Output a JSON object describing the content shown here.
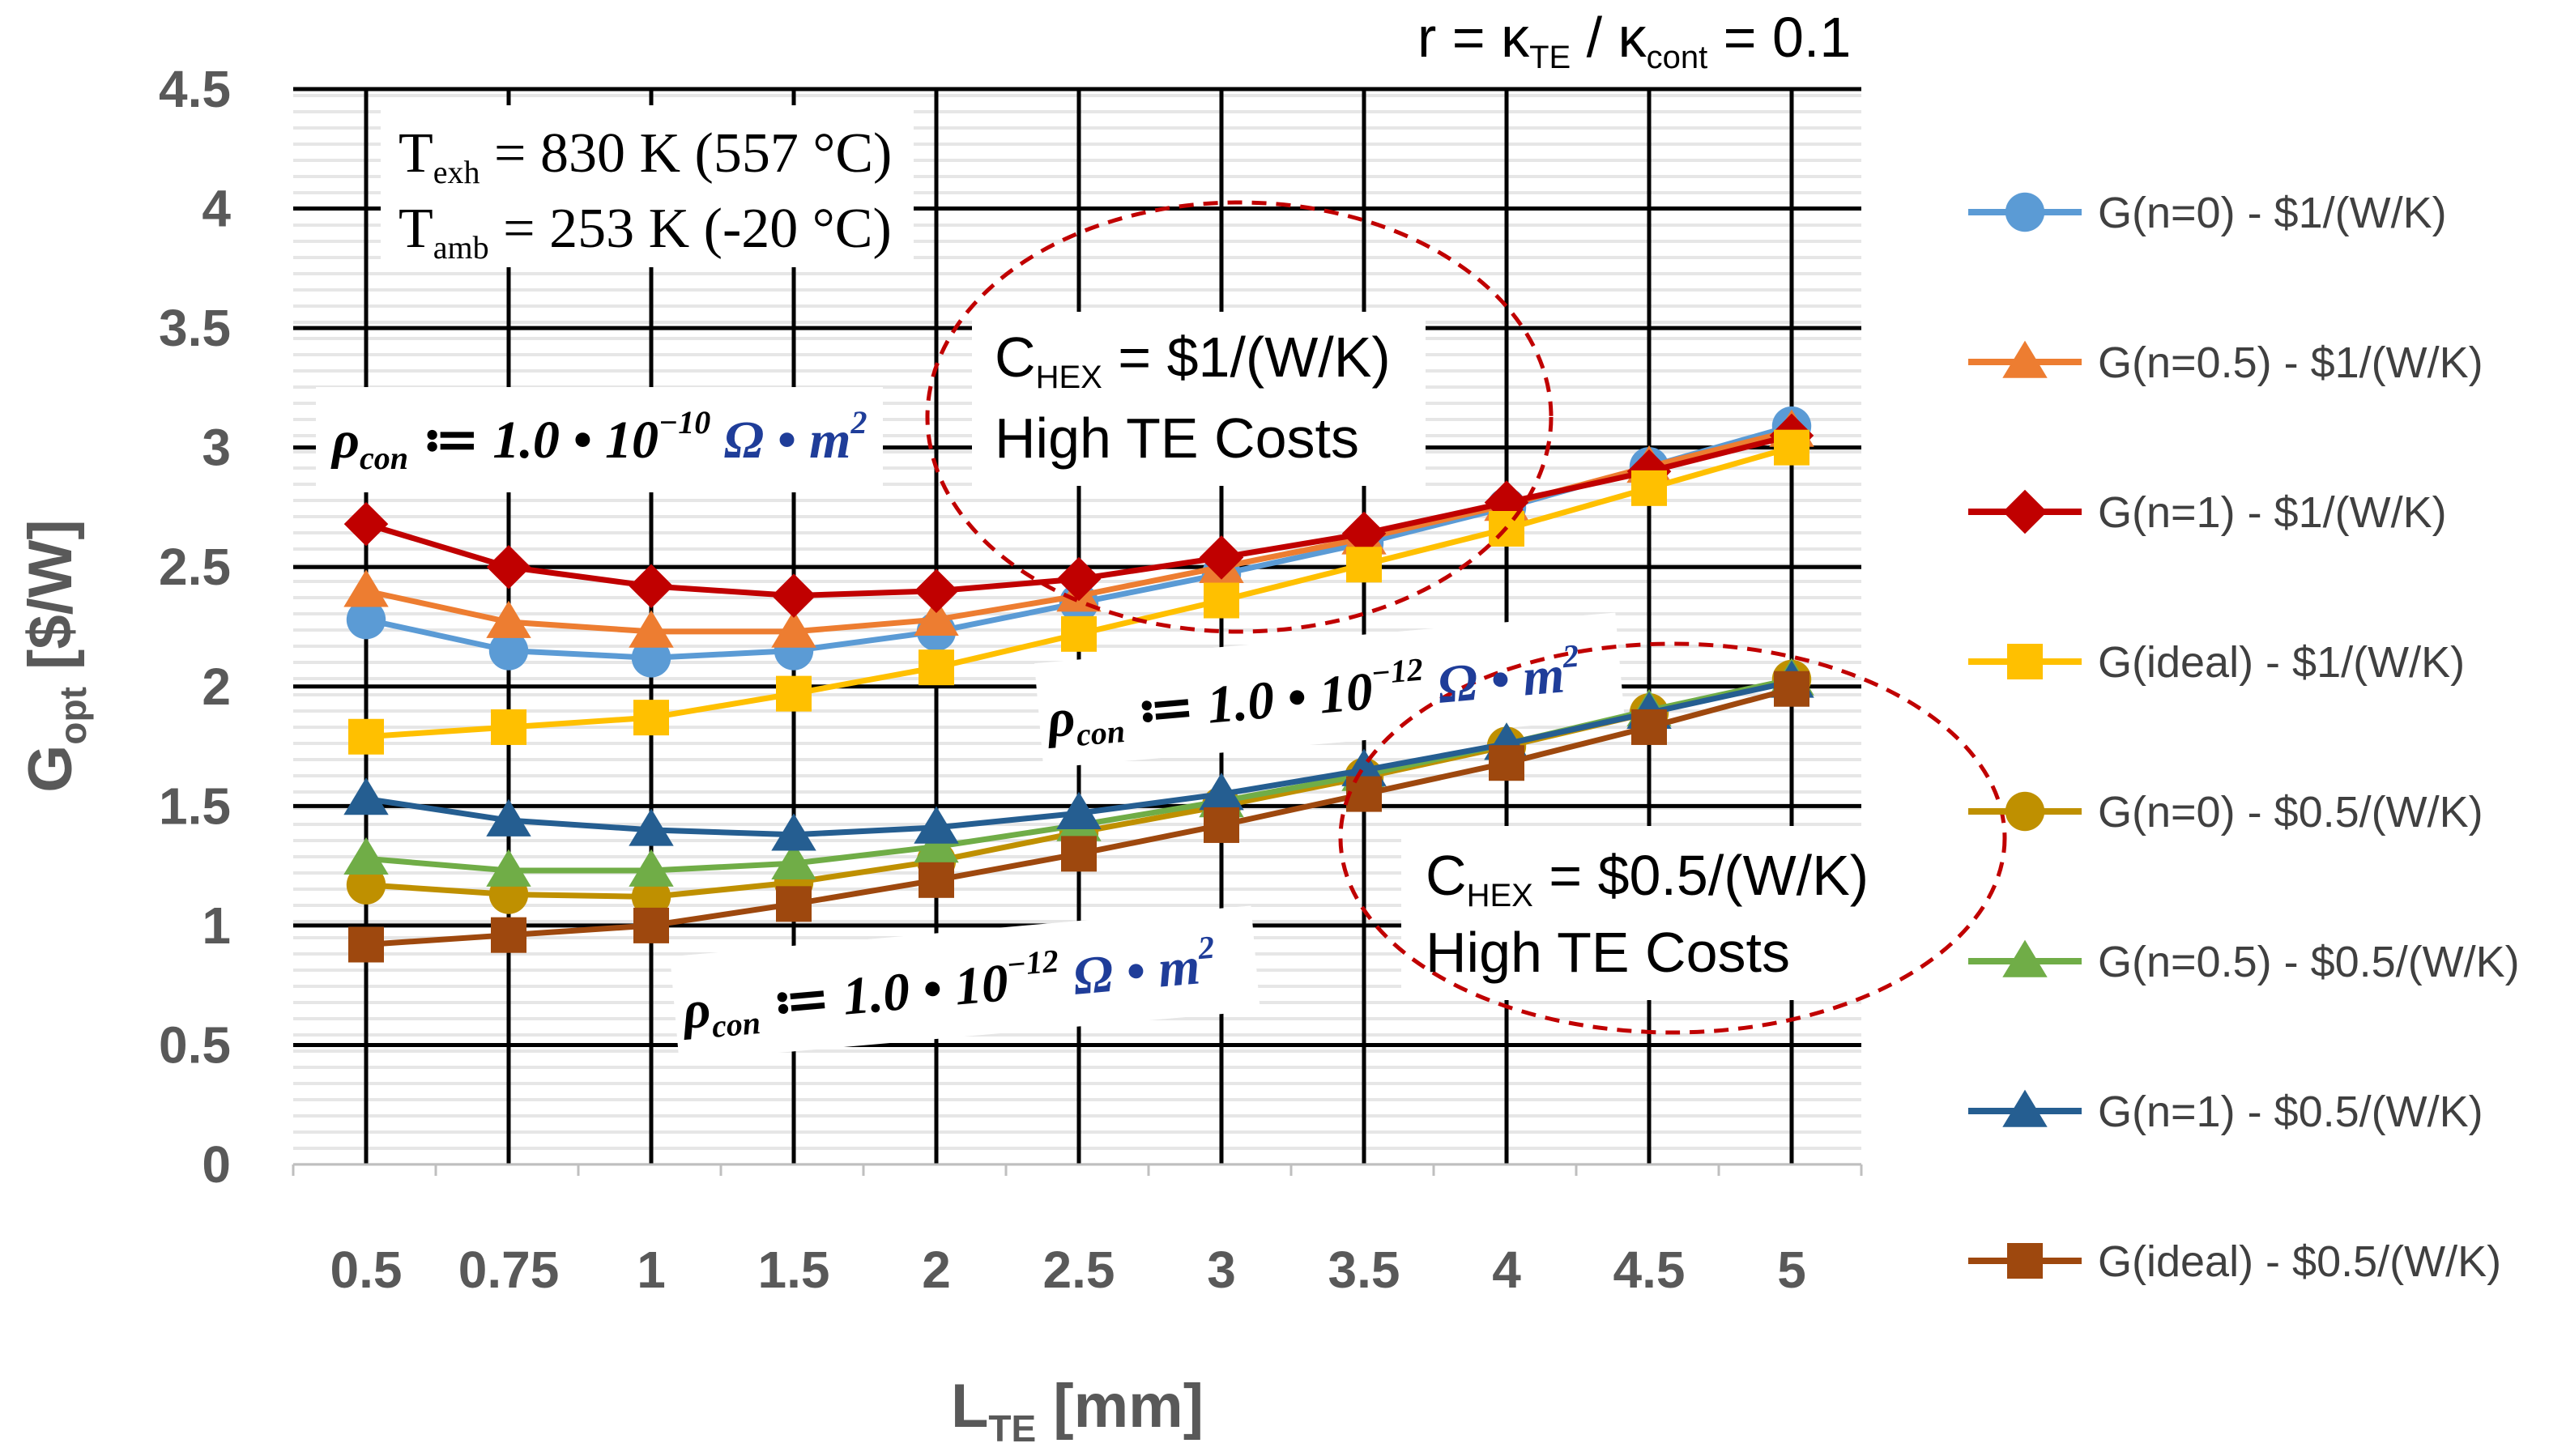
{
  "chart_data": {
    "type": "line",
    "title": "",
    "top_annotation": {
      "prefix": "r = κ",
      "sub1": "TE",
      "mid": " / κ",
      "sub2": "cont",
      "suffix": " = 0.1"
    },
    "xlabel": {
      "main": "L",
      "sub": "TE",
      "rest": " [mm]"
    },
    "ylabel": {
      "main": "G",
      "sub": "opt",
      "rest": " [$/W]"
    },
    "categories": [
      "0.5",
      "0.75",
      "1",
      "1.5",
      "2",
      "2.5",
      "3",
      "3.5",
      "4",
      "4.5",
      "5"
    ],
    "ylim": [
      0,
      4.5
    ],
    "yticks": [
      "0",
      "0.5",
      "1",
      "1.5",
      "2",
      "2.5",
      "3",
      "3.5",
      "4",
      "4.5"
    ],
    "grid": true,
    "legend_position": "right",
    "series": [
      {
        "name": "G(n=0) - $1/(W/K)",
        "marker": "circle",
        "color": "#5b9bd5",
        "values": [
          2.28,
          2.15,
          2.12,
          2.15,
          2.23,
          2.35,
          2.47,
          2.6,
          2.75,
          2.92,
          3.09
        ]
      },
      {
        "name": "G(n=0.5) - $1/(W/K)",
        "marker": "triangle",
        "color": "#ed7d31",
        "values": [
          2.4,
          2.27,
          2.23,
          2.23,
          2.28,
          2.38,
          2.5,
          2.62,
          2.76,
          2.92,
          3.07
        ]
      },
      {
        "name": "G(n=1) - $1/(W/K)",
        "marker": "diamond",
        "color": "#c00000",
        "values": [
          2.68,
          2.5,
          2.42,
          2.38,
          2.4,
          2.45,
          2.54,
          2.64,
          2.77,
          2.9,
          3.05
        ]
      },
      {
        "name": "G(ideal) - $1/(W/K)",
        "marker": "square",
        "color": "#ffc000",
        "values": [
          1.79,
          1.83,
          1.87,
          1.97,
          2.08,
          2.22,
          2.36,
          2.51,
          2.66,
          2.83,
          3.0
        ]
      },
      {
        "name": "G(n=0) - $0.5/(W/K)",
        "marker": "circle",
        "color": "#bf9000",
        "values": [
          1.17,
          1.13,
          1.12,
          1.18,
          1.27,
          1.39,
          1.5,
          1.62,
          1.75,
          1.89,
          2.03
        ]
      },
      {
        "name": "G(n=0.5) - $0.5/(W/K)",
        "marker": "triangle",
        "color": "#70ad47",
        "values": [
          1.28,
          1.23,
          1.23,
          1.26,
          1.33,
          1.42,
          1.52,
          1.63,
          1.76,
          1.9,
          2.03
        ]
      },
      {
        "name": "G(n=1) - $0.5/(W/K)",
        "marker": "triangle",
        "color": "#255e91",
        "values": [
          1.53,
          1.44,
          1.4,
          1.38,
          1.41,
          1.47,
          1.55,
          1.65,
          1.76,
          1.89,
          2.02
        ]
      },
      {
        "name": "G(ideal) - $0.5/(W/K)",
        "marker": "square",
        "color": "#9e480e",
        "values": [
          0.92,
          0.96,
          1.0,
          1.09,
          1.19,
          1.3,
          1.42,
          1.55,
          1.68,
          1.83,
          1.99
        ]
      }
    ],
    "annotations": {
      "temps": {
        "line1": {
          "main": "T",
          "sub": "exh",
          "rest": " = 830 K (557 °C)"
        },
        "line2": {
          "main": "T",
          "sub": "amb",
          "rest": " = 253 K (-20 °C)"
        }
      },
      "cost_high": {
        "line1_main": "C",
        "line1_sub": "HEX",
        "line1_rest": " = $1/(W/K)",
        "line2": "High TE Costs"
      },
      "cost_low": {
        "line1_main": "C",
        "line1_sub": "HEX",
        "line1_rest": " = $0.5/(W/K)",
        "line2": "High TE Costs"
      },
      "rho_top": {
        "prefix": "ρ",
        "sub": "con",
        "mid": " ≔ 1.0 • 10",
        "exp": "−10",
        "unit": " Ω • m",
        "unit_exp": "2"
      },
      "rho_mid": {
        "prefix": "ρ",
        "sub": "con",
        "mid": " ≔ 1.0 • 10",
        "exp": "−12",
        "unit": " Ω • m",
        "unit_exp": "2"
      },
      "rho_low": {
        "prefix": "ρ",
        "sub": "con",
        "mid": " ≔ 1.0 • 10",
        "exp": "−12",
        "unit": " Ω • m",
        "unit_exp": "2"
      }
    }
  }
}
